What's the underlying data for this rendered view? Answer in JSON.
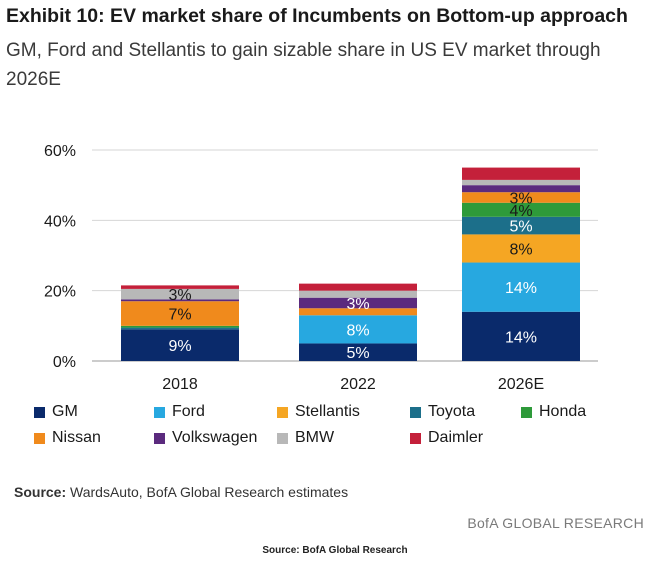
{
  "header": {
    "title": "Exhibit 10: EV market share of Incumbents on Bottom-up approach",
    "subtitle": "GM, Ford and Stellantis to gain sizable share in US EV market through 2026E"
  },
  "source": {
    "label": "Source:",
    "text": "WardsAuto, BofA Global Research estimates"
  },
  "brand": "BofA GLOBAL RESEARCH",
  "footer": "Source: BofA Global Research",
  "chart_data": {
    "type": "bar",
    "stacked": true,
    "title": "",
    "xlabel": "",
    "ylabel": "",
    "ylim": [
      0,
      60
    ],
    "yticks": [
      "0%",
      "20%",
      "40%",
      "60%"
    ],
    "yticks_values": [
      0,
      20,
      40,
      60
    ],
    "grid": true,
    "legend_position": "bottom",
    "categories": [
      "2018",
      "2022",
      "2026E"
    ],
    "series": [
      {
        "name": "GM",
        "color": "#0a2a6b",
        "values": [
          9,
          5,
          14
        ],
        "labels": [
          "9%",
          "5%",
          "14%"
        ]
      },
      {
        "name": "Ford",
        "color": "#27a8e0",
        "values": [
          0,
          8,
          14
        ],
        "labels": [
          "",
          "8%",
          "14%"
        ]
      },
      {
        "name": "Stellantis",
        "color": "#f5a623",
        "values": [
          0,
          0,
          8
        ],
        "labels": [
          "",
          "",
          "8%"
        ]
      },
      {
        "name": "Toyota",
        "color": "#1c6f8a",
        "values": [
          0.5,
          0,
          5
        ],
        "labels": [
          "",
          "",
          "5%"
        ]
      },
      {
        "name": "Honda",
        "color": "#2e9a3a",
        "values": [
          0.5,
          0,
          4
        ],
        "labels": [
          "",
          "",
          "4%"
        ]
      },
      {
        "name": "Nissan",
        "color": "#f08a1c",
        "values": [
          7,
          2,
          3
        ],
        "labels": [
          "7%",
          "",
          "3%"
        ]
      },
      {
        "name": "Volkswagen",
        "color": "#5b2a7e",
        "values": [
          0.5,
          3,
          2
        ],
        "labels": [
          "",
          "3%",
          ""
        ]
      },
      {
        "name": "BMW",
        "color": "#b8b8b8",
        "values": [
          3,
          2,
          1.5
        ],
        "labels": [
          "3%",
          "",
          ""
        ]
      },
      {
        "name": "Daimler",
        "color": "#c4203a",
        "values": [
          1,
          2,
          3.5
        ],
        "labels": [
          "",
          "",
          ""
        ]
      }
    ]
  }
}
